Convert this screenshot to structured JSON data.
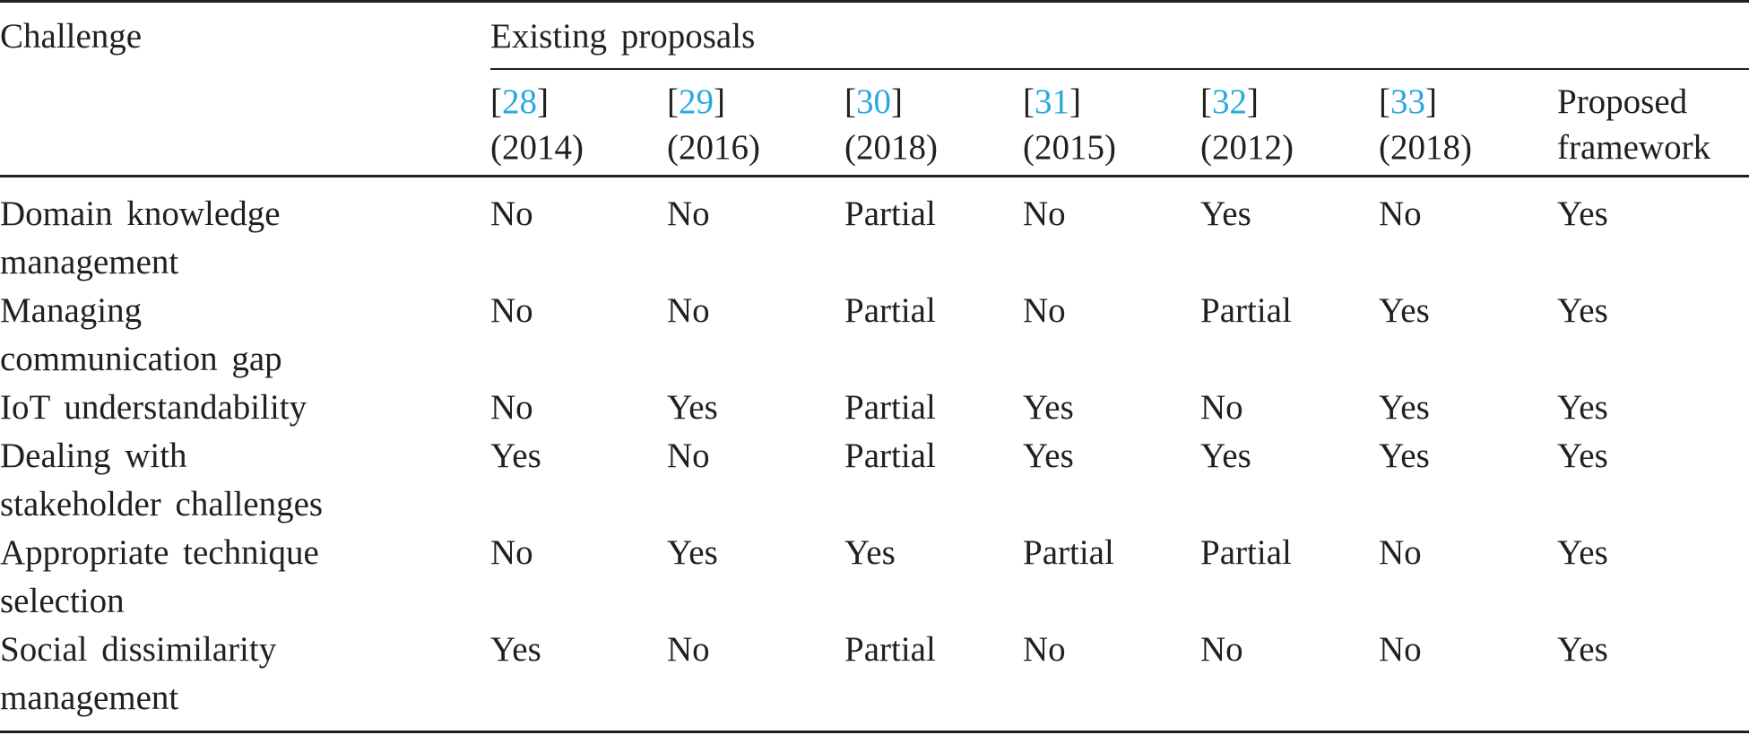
{
  "table": {
    "header": {
      "challenge": "Challenge",
      "group": "Existing proposals"
    },
    "citation_brackets": [
      "[",
      "]"
    ],
    "columns": [
      {
        "ref": "28",
        "year": "(2014)"
      },
      {
        "ref": "29",
        "year": "(2016)"
      },
      {
        "ref": "30",
        "year": "(2018)"
      },
      {
        "ref": "31",
        "year": "(2015)"
      },
      {
        "ref": "32",
        "year": "(2012)"
      },
      {
        "ref": "33",
        "year": "(2018)"
      }
    ],
    "proposed": [
      "Proposed",
      "framework"
    ],
    "rows": [
      {
        "challenge": [
          "Domain knowledge",
          "management"
        ],
        "cells": [
          "No",
          "No",
          "Partial",
          "No",
          "Yes",
          "No",
          "Yes"
        ]
      },
      {
        "challenge": [
          "Managing",
          "communication gap"
        ],
        "cells": [
          "No",
          "No",
          "Partial",
          "No",
          "Partial",
          "Yes",
          "Yes"
        ]
      },
      {
        "challenge": [
          "IoT understandability"
        ],
        "cells": [
          "No",
          "Yes",
          "Partial",
          "Yes",
          "No",
          "Yes",
          "Yes"
        ]
      },
      {
        "challenge": [
          "Dealing with",
          "stakeholder challenges"
        ],
        "cells": [
          "Yes",
          "No",
          "Partial",
          "Yes",
          "Yes",
          "Yes",
          "Yes"
        ]
      },
      {
        "challenge": [
          "Appropriate technique",
          "selection"
        ],
        "cells": [
          "No",
          "Yes",
          "Yes",
          "Partial",
          "Partial",
          "No",
          "Yes"
        ]
      },
      {
        "challenge": [
          "Social dissimilarity",
          "management"
        ],
        "cells": [
          "Yes",
          "No",
          "Partial",
          "No",
          "No",
          "No",
          "Yes"
        ]
      }
    ]
  }
}
